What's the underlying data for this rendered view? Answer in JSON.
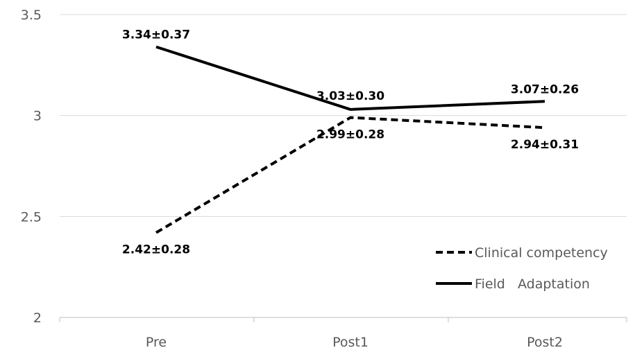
{
  "chart_data": {
    "type": "line",
    "title": "",
    "xlabel": "",
    "ylabel": "",
    "categories": [
      "Pre",
      "Post1",
      "Post2"
    ],
    "ylim": [
      2,
      3.5
    ],
    "yticks": [
      "2",
      "2.5",
      "3",
      "3.5"
    ],
    "grid": true,
    "legend_position": "bottom-right",
    "series": [
      {
        "name": "Clinical competency",
        "style": "dashed",
        "color": "#000000",
        "values": [
          2.42,
          2.99,
          2.94
        ],
        "labels": [
          "2.42±0.28",
          "2.99±0.28",
          "2.94±0.31"
        ]
      },
      {
        "name": "Field   Adaptation",
        "style": "solid",
        "color": "#000000",
        "values": [
          3.34,
          3.03,
          3.07
        ],
        "labels": [
          "3.34±0.37",
          "3.03±0.30",
          "3.07±0.26"
        ]
      }
    ]
  }
}
